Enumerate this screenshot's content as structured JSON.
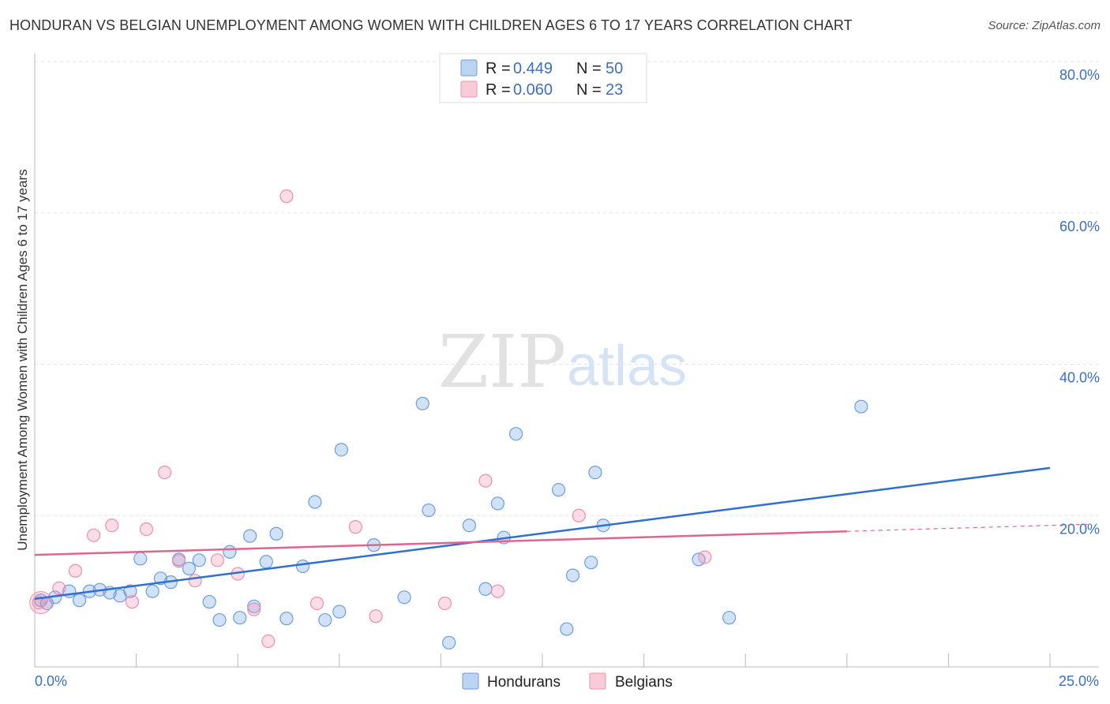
{
  "header": {
    "title": "HONDURAN VS BELGIAN UNEMPLOYMENT AMONG WOMEN WITH CHILDREN AGES 6 TO 17 YEARS CORRELATION CHART",
    "source": "Source: ZipAtlas.com"
  },
  "watermark": {
    "zip": "ZIP",
    "atlas": "atlas"
  },
  "legend": {
    "r_label": "R =",
    "n_label": "N =",
    "rows": [
      {
        "name": "Hondurans",
        "r": "0.449",
        "n": "50",
        "color": "#6a9ee0"
      },
      {
        "name": "Belgians",
        "r": "0.060",
        "n": "23",
        "color": "#ee8fab"
      }
    ]
  },
  "bottom_legend": [
    "Hondurans",
    "Belgians"
  ],
  "chart_data": {
    "type": "scatter",
    "title": "HONDURAN VS BELGIAN UNEMPLOYMENT AMONG WOMEN WITH CHILDREN AGES 6 TO 17 YEARS CORRELATION CHART",
    "xlabel": "",
    "ylabel": "Unemployment Among Women with Children Ages 6 to 17 years",
    "xlim": [
      0,
      25
    ],
    "ylim": [
      0,
      80
    ],
    "x_tick_labels": [
      "0.0%",
      "25.0%"
    ],
    "y_ticks": [
      20,
      40,
      60,
      80
    ],
    "y_tick_labels": [
      "20.0%",
      "40.0%",
      "60.0%",
      "80.0%"
    ],
    "grid": true,
    "legend_position": "top-center",
    "series": [
      {
        "name": "Hondurans",
        "color": "#6a9ee0",
        "line_color": "#2f6fd0",
        "r": 0.449,
        "n": 50,
        "trend": {
          "x_start": 0,
          "y_start": 9.0,
          "x_end": 25,
          "y_end": 26.3,
          "dashed_from": null
        },
        "points": [
          [
            0.15,
            8.8
          ],
          [
            0.3,
            8.4
          ],
          [
            0.5,
            9.2
          ],
          [
            0.85,
            10.0
          ],
          [
            1.1,
            8.8
          ],
          [
            1.35,
            10.0
          ],
          [
            1.6,
            10.2
          ],
          [
            1.85,
            9.8
          ],
          [
            2.1,
            9.4
          ],
          [
            2.35,
            10.0
          ],
          [
            2.6,
            14.3
          ],
          [
            2.9,
            10.0
          ],
          [
            3.1,
            11.7
          ],
          [
            3.35,
            11.2
          ],
          [
            3.55,
            14.2
          ],
          [
            3.8,
            13.0
          ],
          [
            4.05,
            14.1
          ],
          [
            4.3,
            8.6
          ],
          [
            4.55,
            6.2
          ],
          [
            4.8,
            15.2
          ],
          [
            5.05,
            6.5
          ],
          [
            5.3,
            17.3
          ],
          [
            5.4,
            8.0
          ],
          [
            5.7,
            13.9
          ],
          [
            5.95,
            17.6
          ],
          [
            6.2,
            6.4
          ],
          [
            6.6,
            13.3
          ],
          [
            6.9,
            21.8
          ],
          [
            7.15,
            6.2
          ],
          [
            7.5,
            7.3
          ],
          [
            7.55,
            28.7
          ],
          [
            8.35,
            16.1
          ],
          [
            9.1,
            9.2
          ],
          [
            9.55,
            34.8
          ],
          [
            9.7,
            20.7
          ],
          [
            10.2,
            3.2
          ],
          [
            10.7,
            18.7
          ],
          [
            11.1,
            10.3
          ],
          [
            11.4,
            21.6
          ],
          [
            11.55,
            17.1
          ],
          [
            11.85,
            30.8
          ],
          [
            12.9,
            23.4
          ],
          [
            13.1,
            5.0
          ],
          [
            13.25,
            12.1
          ],
          [
            13.7,
            13.8
          ],
          [
            13.8,
            25.7
          ],
          [
            14.0,
            18.7
          ],
          [
            16.35,
            14.2
          ],
          [
            17.1,
            6.5
          ],
          [
            20.35,
            34.4
          ]
        ]
      },
      {
        "name": "Belgians",
        "color": "#ee8fab",
        "line_color": "#e0658e",
        "r": 0.06,
        "n": 23,
        "trend": {
          "x_start": 0,
          "y_start": 14.8,
          "x_end": 25,
          "y_end": 18.7,
          "dashed_from": 20.0
        },
        "points": [
          [
            0.1,
            8.5
          ],
          [
            0.6,
            10.4
          ],
          [
            1.0,
            12.7
          ],
          [
            1.45,
            17.4
          ],
          [
            1.9,
            18.7
          ],
          [
            2.4,
            8.6
          ],
          [
            2.75,
            18.2
          ],
          [
            3.2,
            25.7
          ],
          [
            3.55,
            14.0
          ],
          [
            3.95,
            11.4
          ],
          [
            4.5,
            14.1
          ],
          [
            5.0,
            12.3
          ],
          [
            5.4,
            7.6
          ],
          [
            5.75,
            3.4
          ],
          [
            6.2,
            62.2
          ],
          [
            6.95,
            8.4
          ],
          [
            7.9,
            18.5
          ],
          [
            8.4,
            6.7
          ],
          [
            10.1,
            8.4
          ],
          [
            11.1,
            24.6
          ],
          [
            11.4,
            10.0
          ],
          [
            13.4,
            20.0
          ],
          [
            16.5,
            14.5
          ]
        ]
      }
    ]
  }
}
